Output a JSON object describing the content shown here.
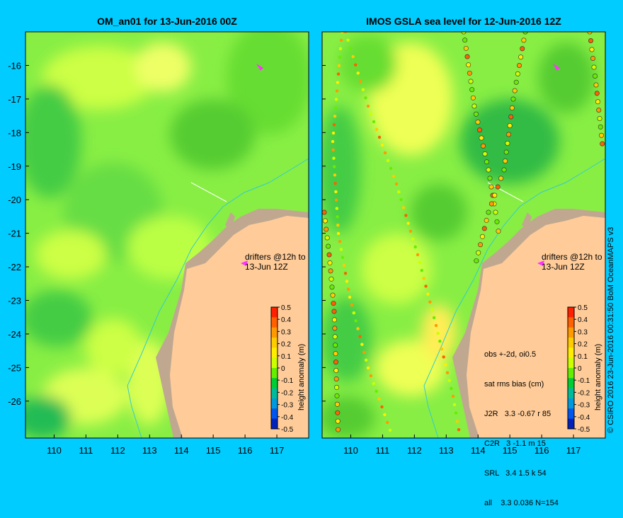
{
  "left_panel": {
    "title": "OM_an01 for 13-Jun-2016 00Z",
    "drifters_label": [
      "drifters @12h to",
      "13-Jun 12Z"
    ],
    "colorbar_label": "height anomaly (m)"
  },
  "right_panel": {
    "title": "IMOS GSLA sea level  for 12-Jun-2016 12Z",
    "drifters_label": [
      "drifters @12h to",
      "13-Jun 12Z"
    ],
    "colorbar_label": "height anomaly (m)",
    "stats": [
      "obs +-2d, oi0.5",
      "sat rms bias (cm)",
      "J2R   3.3 -0.67 r 85",
      "C2R   3 -1.1 m 15",
      "SRL   3.4 1.5 k 54",
      "all    3.3 0.036 N=154"
    ]
  },
  "credit": "© CSIRO 2016   23-Jun-2016 00:31:50 BoM OceanMAPS v3",
  "axes": {
    "lon_ticks": [
      "110",
      "111",
      "112",
      "113",
      "114",
      "115",
      "116",
      "117"
    ],
    "lat_ticks": [
      "-16",
      "-17",
      "-18",
      "-19",
      "-20",
      "-21",
      "-22",
      "-23",
      "-24",
      "-25",
      "-26"
    ],
    "lon_range": [
      109.1,
      118.0
    ],
    "lat_range": [
      -27.1,
      -15.0
    ]
  },
  "colorbar": {
    "ticks": [
      "0.5",
      "0.4",
      "0.3",
      "0.2",
      "0.1",
      "0",
      "-0.1",
      "-0.2",
      "-0.3",
      "-0.4",
      "-0.5"
    ],
    "colors": [
      "#ff2000",
      "#ff6000",
      "#ff9a00",
      "#ffcc00",
      "#ffee00",
      "#ccff00",
      "#66ee00",
      "#00cc33",
      "#00bb99",
      "#0099dd",
      "#0055ee",
      "#0022bb"
    ]
  },
  "colors": {
    "background": "#00ccff",
    "land": "#ffcc99",
    "shelf": "#c0a890",
    "field_base": "#88ee44"
  }
}
